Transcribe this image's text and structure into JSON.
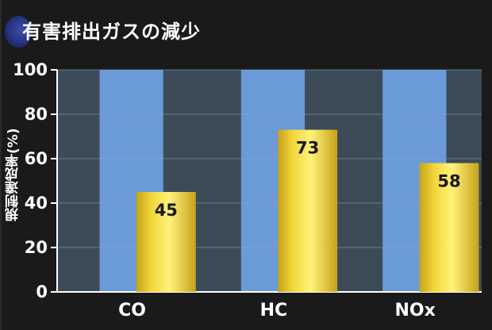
{
  "chart_data": {
    "type": "bar",
    "title": "有害排出ガスの減少",
    "ylabel": "規制達成率(%)",
    "xlabel": "",
    "categories": [
      "CO",
      "HC",
      "NOx"
    ],
    "values": [
      45,
      73,
      58
    ],
    "value_labels": [
      "45",
      "73",
      "58"
    ],
    "ylim": [
      0,
      100
    ],
    "yticks": [
      0,
      20,
      40,
      60,
      80,
      100
    ],
    "ytick_labels": [
      "0",
      "20",
      "40",
      "60",
      "80",
      "100"
    ],
    "grid": true,
    "legend": "none",
    "colors": {
      "background": "#1a1a1a",
      "plot_band_light": "#6a9bd8",
      "plot_band_dark": "#3d4b58",
      "bar": "#f2d63a",
      "bar_highlight": "#fff27a",
      "bar_shadow": "#c7a21a",
      "text": "#ffffff",
      "value_text": "#1a1a1a"
    }
  }
}
